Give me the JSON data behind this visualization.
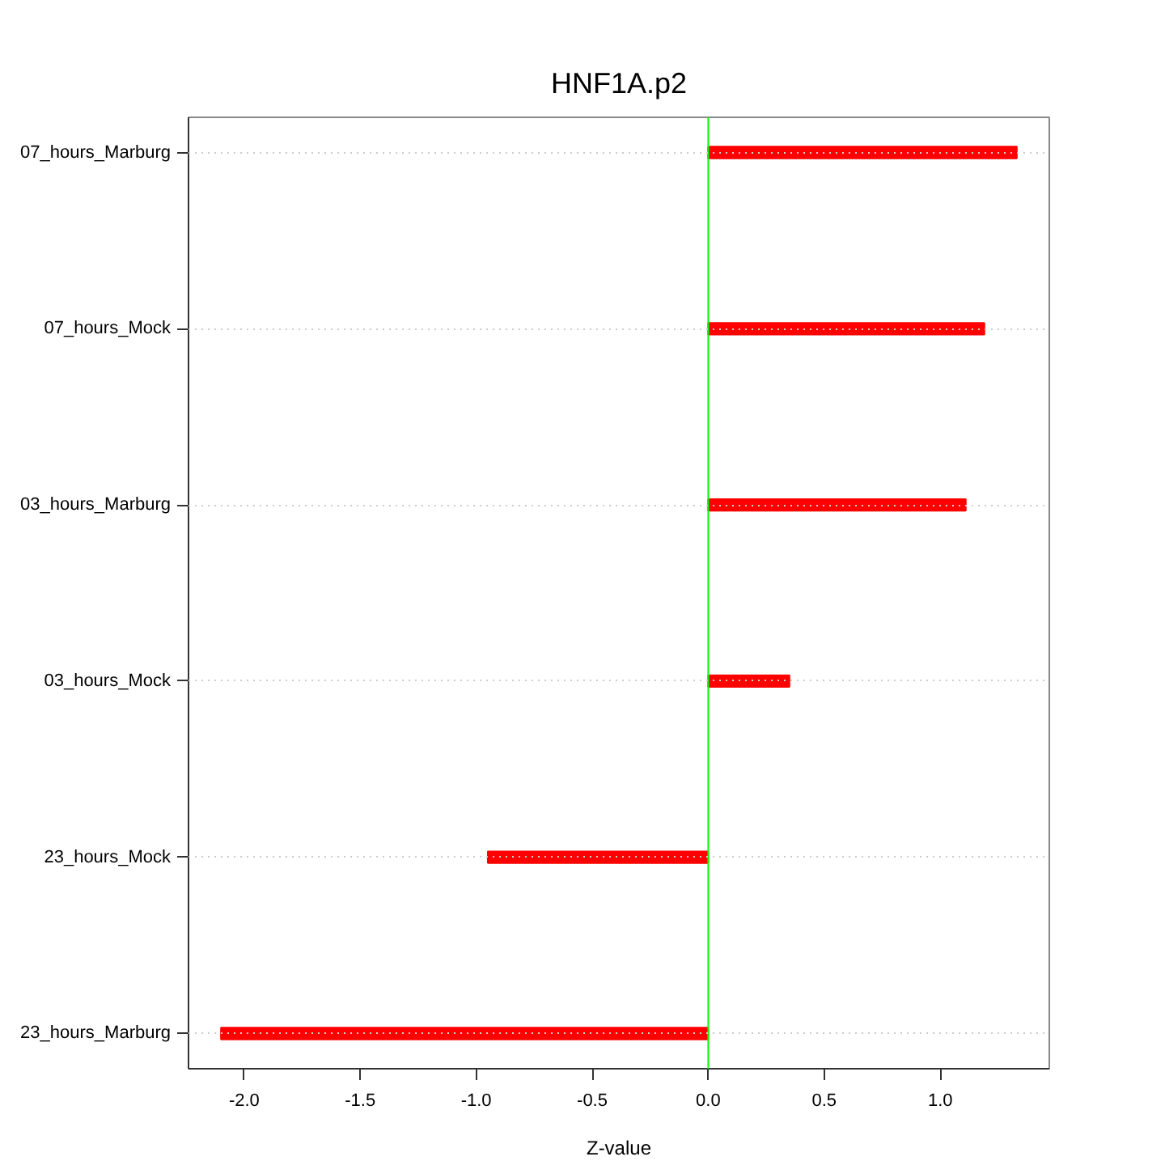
{
  "chart_data": {
    "type": "bar",
    "orientation": "horizontal",
    "title": "HNF1A.p2",
    "xlabel": "Z-value",
    "categories": [
      "07_hours_Marburg",
      "07_hours_Mock",
      "03_hours_Marburg",
      "03_hours_Mock",
      "23_hours_Mock",
      "23_hours_Marburg"
    ],
    "values": [
      1.33,
      1.19,
      1.11,
      0.35,
      -0.95,
      -2.1
    ],
    "color": "#ff0000",
    "xlim": [
      -2.24,
      1.47
    ],
    "xticks": [
      {
        "value": -2,
        "label": "-2.0"
      },
      -1.5,
      {
        "value": -1,
        "label": "-1.0"
      },
      -0.5,
      {
        "value": 0,
        "label": "0.0"
      },
      0.5,
      {
        "value": 1,
        "label": "1.0"
      }
    ],
    "grid": "y",
    "ref_lines": [
      {
        "axis": "x",
        "value": 0,
        "color": "#00ff00"
      }
    ]
  }
}
